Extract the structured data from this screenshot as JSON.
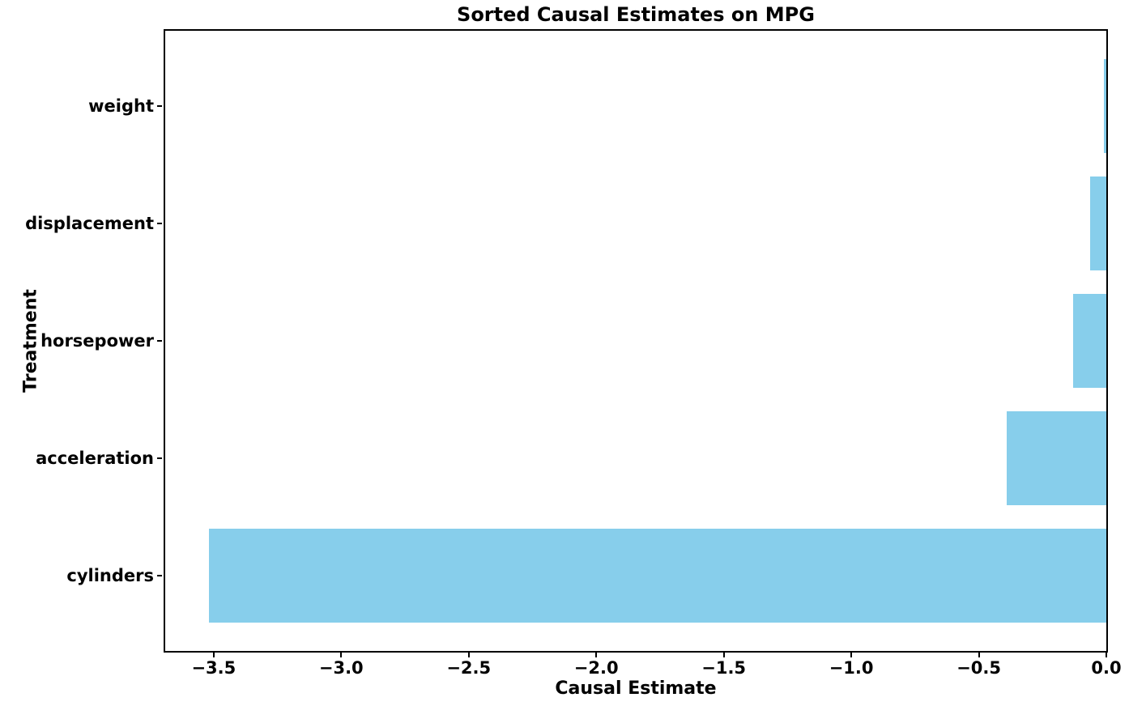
{
  "figure": {
    "background": "#ffffff",
    "spine_color": "#000000",
    "text_color": "#000000"
  },
  "chart_data": {
    "type": "bar",
    "orientation": "horizontal",
    "title": "Sorted Causal Estimates on MPG",
    "xlabel": "Causal Estimate",
    "ylabel": "Treatment",
    "categories": [
      "weight",
      "displacement",
      "horsepower",
      "acceleration",
      "cylinders"
    ],
    "values": [
      -0.01,
      -0.065,
      -0.13,
      -0.39,
      -3.52
    ],
    "bar_color": "#87CEEB",
    "bar_height": 0.8,
    "xlim": [
      -3.69,
      0
    ],
    "ylim": [
      -0.64,
      4.64
    ],
    "x_ticks": [
      {
        "value": -3.5,
        "label": "−3.5"
      },
      {
        "value": -3.0,
        "label": "−3.0"
      },
      {
        "value": -2.5,
        "label": "−2.5"
      },
      {
        "value": -2.0,
        "label": "−2.0"
      },
      {
        "value": -1.5,
        "label": "−1.5"
      },
      {
        "value": -1.0,
        "label": "−1.0"
      },
      {
        "value": -0.5,
        "label": "−0.5"
      },
      {
        "value": 0.0,
        "label": "0.0"
      }
    ],
    "grid": false,
    "legend": null
  }
}
